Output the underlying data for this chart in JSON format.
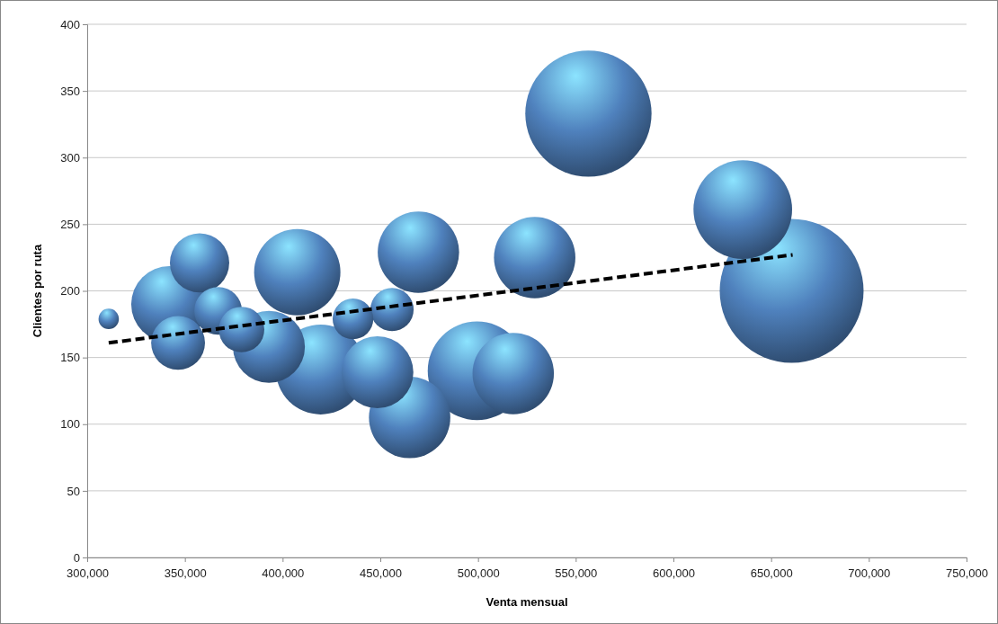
{
  "chart_data": {
    "type": "bubble",
    "xlabel": "Venta mensual",
    "ylabel": "Clientes por ruta",
    "xlim": [
      300000,
      750000
    ],
    "xticks": [
      {
        "value": 300000,
        "label": "300,000"
      },
      {
        "value": 350000,
        "label": "350,000"
      },
      {
        "value": 400000,
        "label": "400,000"
      },
      {
        "value": 450000,
        "label": "450,000"
      },
      {
        "value": 500000,
        "label": "500,000"
      },
      {
        "value": 550000,
        "label": "550,000"
      },
      {
        "value": 600000,
        "label": "600,000"
      },
      {
        "value": 650000,
        "label": "650,000"
      },
      {
        "value": 700000,
        "label": "700,000"
      },
      {
        "value": 750000,
        "label": "750,000"
      }
    ],
    "ylim": [
      0,
      400
    ],
    "yticks": [
      0,
      50,
      100,
      150,
      200,
      250,
      300,
      350,
      400
    ],
    "grid": "y",
    "series": [
      {
        "color": "#4f81bd",
        "x": [
          311000,
          342000,
          357500,
          367000,
          379000,
          346500,
          393000,
          407500,
          419500,
          436000,
          456000,
          448500,
          469500,
          465000,
          499500,
          529000,
          518000,
          556500,
          635500,
          660500
        ],
        "values": [
          179,
          190,
          221,
          185,
          171,
          161,
          158,
          214,
          141,
          179,
          186,
          139,
          229,
          105,
          140,
          225,
          138,
          333,
          261,
          200
        ],
        "sizes": [
          0.02,
          0.28,
          0.17,
          0.11,
          0.1,
          0.14,
          0.25,
          0.36,
          0.39,
          0.08,
          0.09,
          0.25,
          0.32,
          0.32,
          0.47,
          0.32,
          0.32,
          0.77,
          0.47,
          1
        ]
      },
      {
        "type": "line",
        "color": "#000000",
        "line_style": "dashed",
        "x": [
          311000,
          661000
        ],
        "values": [
          161,
          227
        ]
      }
    ]
  }
}
